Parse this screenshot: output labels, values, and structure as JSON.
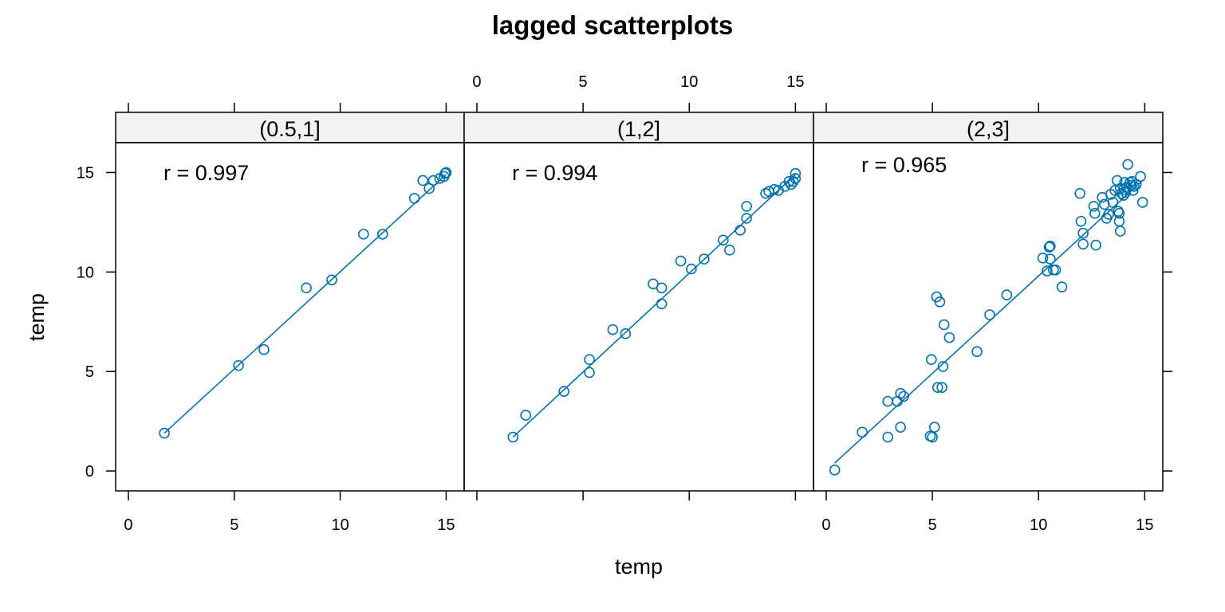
{
  "chart_data": {
    "type": "scatter",
    "title": "lagged scatterplots",
    "xlabel": "temp",
    "ylabel": "temp",
    "xlim": [
      -0.6,
      15.85
    ],
    "ylim": [
      -1.0,
      16.5
    ],
    "xticks": [
      0,
      5,
      10,
      15
    ],
    "yticks": [
      0,
      5,
      10,
      15
    ],
    "grid": false,
    "colors": {
      "points": "#0072B2",
      "strip_bg": "#f2f2f2",
      "axis": "#000000"
    },
    "panels": [
      {
        "strip": "(0.5,1]",
        "annotation": "r = 0.997",
        "fit": {
          "x": [
            1.7,
            15.0
          ],
          "y": [
            1.9,
            14.9
          ]
        },
        "points": [
          [
            1.7,
            1.9
          ],
          [
            5.2,
            5.3
          ],
          [
            6.4,
            6.1
          ],
          [
            8.4,
            9.2
          ],
          [
            9.6,
            9.6
          ],
          [
            11.1,
            11.9
          ],
          [
            12.0,
            11.9
          ],
          [
            13.5,
            13.7
          ],
          [
            13.9,
            14.6
          ],
          [
            14.2,
            14.2
          ],
          [
            14.4,
            14.6
          ],
          [
            14.7,
            14.7
          ],
          [
            14.9,
            14.8
          ],
          [
            14.95,
            14.95
          ],
          [
            15.0,
            15.0
          ]
        ]
      },
      {
        "strip": "(1,2]",
        "annotation": "r = 0.994",
        "fit": {
          "x": [
            1.7,
            15.0
          ],
          "y": [
            1.7,
            14.9
          ]
        },
        "points": [
          [
            1.7,
            1.7
          ],
          [
            2.3,
            2.8
          ],
          [
            4.1,
            4.0
          ],
          [
            5.3,
            5.6
          ],
          [
            5.3,
            4.95
          ],
          [
            6.4,
            7.1
          ],
          [
            7.0,
            6.9
          ],
          [
            8.3,
            9.4
          ],
          [
            8.7,
            9.2
          ],
          [
            8.7,
            8.4
          ],
          [
            9.6,
            10.55
          ],
          [
            10.1,
            10.15
          ],
          [
            10.7,
            10.65
          ],
          [
            11.6,
            11.6
          ],
          [
            11.9,
            11.1
          ],
          [
            12.4,
            12.1
          ],
          [
            12.7,
            12.7
          ],
          [
            12.7,
            13.3
          ],
          [
            13.6,
            13.95
          ],
          [
            13.75,
            14.05
          ],
          [
            14.0,
            14.15
          ],
          [
            14.2,
            14.1
          ],
          [
            14.5,
            14.3
          ],
          [
            14.7,
            14.55
          ],
          [
            14.8,
            14.4
          ],
          [
            14.9,
            14.55
          ],
          [
            15.0,
            14.95
          ],
          [
            15.0,
            14.7
          ]
        ]
      },
      {
        "strip": "(2,3]",
        "annotation": "r = 0.965",
        "fit": {
          "x": [
            0.4,
            14.9
          ],
          "y": [
            0.4,
            14.6
          ]
        },
        "points": [
          [
            0.4,
            0.05
          ],
          [
            1.7,
            1.95
          ],
          [
            2.9,
            3.5
          ],
          [
            2.9,
            1.7
          ],
          [
            3.35,
            3.5
          ],
          [
            3.5,
            3.9
          ],
          [
            3.65,
            3.75
          ],
          [
            3.5,
            2.2
          ],
          [
            4.9,
            1.75
          ],
          [
            5.0,
            1.7
          ],
          [
            4.95,
            5.6
          ],
          [
            5.1,
            2.2
          ],
          [
            5.2,
            8.75
          ],
          [
            5.25,
            4.2
          ],
          [
            5.35,
            8.5
          ],
          [
            5.45,
            4.2
          ],
          [
            5.5,
            5.25
          ],
          [
            5.55,
            7.35
          ],
          [
            5.8,
            6.7
          ],
          [
            7.1,
            6.0
          ],
          [
            7.7,
            7.85
          ],
          [
            8.5,
            8.85
          ],
          [
            10.2,
            10.7
          ],
          [
            10.4,
            10.05
          ],
          [
            10.5,
            11.25
          ],
          [
            10.55,
            11.3
          ],
          [
            10.55,
            10.65
          ],
          [
            10.7,
            10.1
          ],
          [
            10.8,
            10.1
          ],
          [
            11.1,
            9.25
          ],
          [
            11.95,
            13.95
          ],
          [
            12.0,
            12.55
          ],
          [
            12.1,
            11.95
          ],
          [
            12.1,
            11.4
          ],
          [
            12.6,
            13.3
          ],
          [
            12.65,
            12.95
          ],
          [
            12.7,
            11.35
          ],
          [
            13.0,
            13.75
          ],
          [
            13.1,
            13.4
          ],
          [
            13.2,
            12.7
          ],
          [
            13.3,
            12.9
          ],
          [
            13.4,
            13.9
          ],
          [
            13.5,
            13.5
          ],
          [
            13.6,
            14.1
          ],
          [
            13.7,
            14.6
          ],
          [
            13.75,
            13.05
          ],
          [
            13.8,
            12.95
          ],
          [
            13.8,
            12.55
          ],
          [
            13.85,
            12.05
          ],
          [
            13.85,
            14.2
          ],
          [
            13.9,
            13.95
          ],
          [
            14.0,
            14.15
          ],
          [
            14.0,
            13.85
          ],
          [
            14.05,
            14.5
          ],
          [
            14.1,
            14.0
          ],
          [
            14.15,
            14.25
          ],
          [
            14.2,
            15.4
          ],
          [
            14.3,
            14.5
          ],
          [
            14.35,
            14.35
          ],
          [
            14.4,
            14.55
          ],
          [
            14.45,
            14.1
          ],
          [
            14.5,
            14.3
          ],
          [
            14.6,
            14.4
          ],
          [
            14.8,
            14.8
          ],
          [
            14.9,
            13.5
          ]
        ]
      }
    ]
  }
}
